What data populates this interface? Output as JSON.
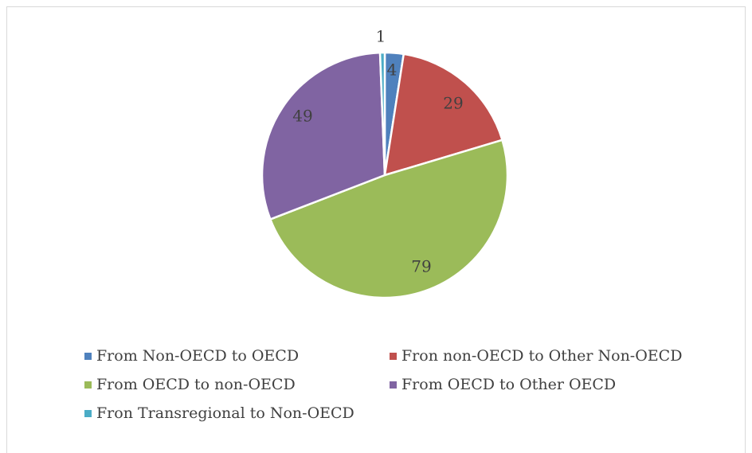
{
  "chart_data": {
    "type": "pie",
    "title": "",
    "slices": [
      {
        "label": "From Non-OECD to OECD",
        "value": 4,
        "color": "#4f81bd"
      },
      {
        "label": "Fron non-OECD to Other Non-OECD",
        "value": 29,
        "color": "#c0504d"
      },
      {
        "label": "From OECD to non-OECD",
        "value": 79,
        "color": "#9bbb59"
      },
      {
        "label": "From OECD to Other OECD",
        "value": 49,
        "color": "#8064a2"
      },
      {
        "label": "Fron Transregional to Non-OECD",
        "value": 1,
        "color": "#4bacc6"
      }
    ],
    "legend_position": "bottom"
  }
}
